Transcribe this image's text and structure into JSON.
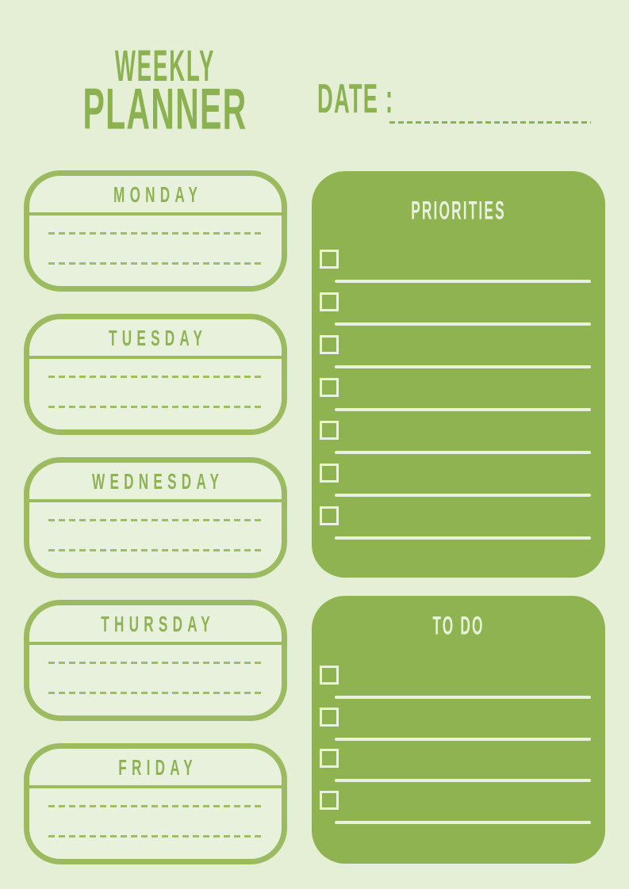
{
  "header": {
    "title_line1": "WEEKLY",
    "title_line2": "PLANNER",
    "date_label": "DATE :"
  },
  "days": [
    {
      "label": "MONDAY",
      "write_lines": 2
    },
    {
      "label": "TUESDAY",
      "write_lines": 2
    },
    {
      "label": "WEDNESDAY",
      "write_lines": 2
    },
    {
      "label": "THURSDAY",
      "write_lines": 2
    },
    {
      "label": "FRIDAY",
      "write_lines": 2
    }
  ],
  "panels": {
    "priorities": {
      "title": "PRIORITIES",
      "checklist_rows": 7
    },
    "todo": {
      "title": "TO DO",
      "checklist_rows": 4
    }
  },
  "colors": {
    "page_background": "#e4efd6",
    "panel_green": "#8fb351",
    "box_border_green": "#9cba60",
    "accent_text_green": "#8cb151",
    "dashed_line_green": "#9fbd66",
    "cream": "#e9f2dc"
  }
}
